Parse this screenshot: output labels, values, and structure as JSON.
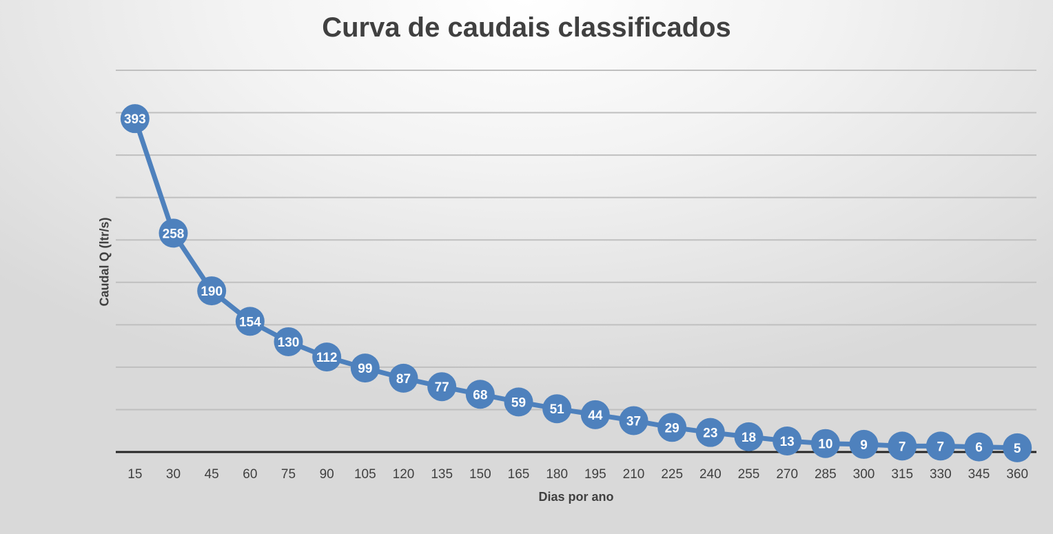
{
  "chart_data": {
    "type": "line",
    "title": "Curva de caudais classificados",
    "xlabel": "Dias por ano",
    "ylabel": "Caudal Q (ltr/s)",
    "x": [
      "15",
      "30",
      "45",
      "60",
      "75",
      "90",
      "105",
      "120",
      "135",
      "150",
      "165",
      "180",
      "195",
      "210",
      "225",
      "240",
      "255",
      "270",
      "285",
      "300",
      "315",
      "330",
      "345",
      "360"
    ],
    "series": [
      {
        "values": [
          393,
          258,
          190,
          154,
          130,
          112,
          99,
          87,
          77,
          68,
          59,
          51,
          44,
          37,
          29,
          23,
          18,
          13,
          10,
          9,
          7,
          7,
          6,
          5
        ]
      }
    ],
    "ylim": [
      0,
      450
    ],
    "grid": true,
    "data_labels": true,
    "legend": "none",
    "colors": {
      "series": "#4e81bd",
      "grid": "#bfbfbf",
      "axis": "#262626",
      "text": "#404040"
    }
  }
}
